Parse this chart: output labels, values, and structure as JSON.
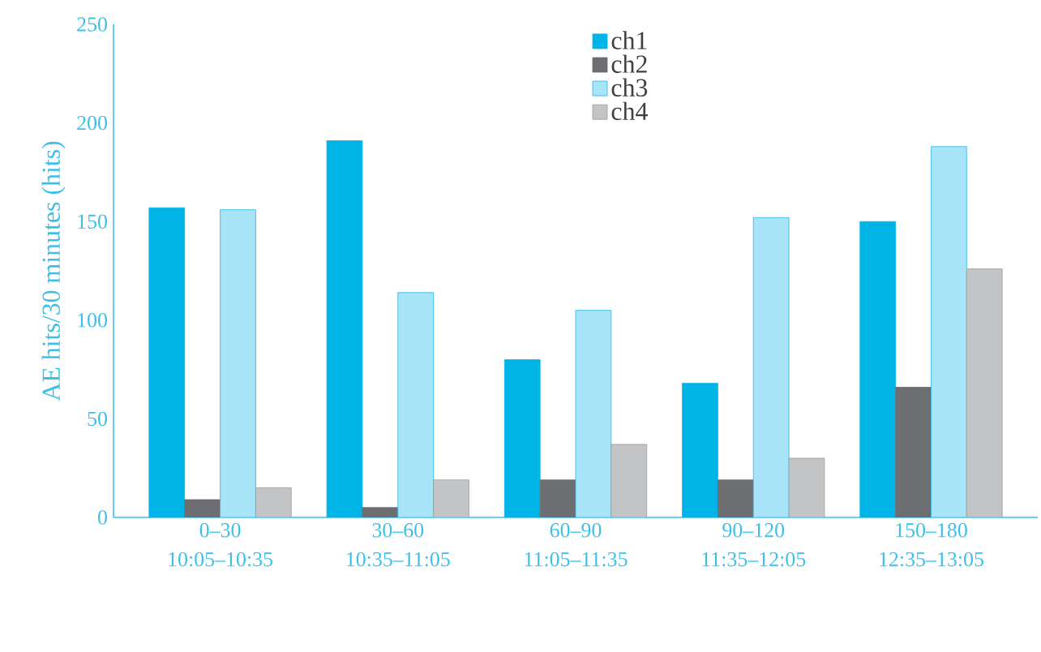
{
  "chart_data": {
    "type": "bar",
    "ylabel": "AE hits/30 minutes (hits)",
    "categories": [
      "0–30 10:05–10:35",
      "30–60 10:35–11:05",
      "60–90 11:05–11:35",
      "90–120 11:35–12:05",
      "150–180 12:35–13:05"
    ],
    "series": [
      {
        "name": "ch1",
        "color": "#00b4e8",
        "values": [
          157,
          191,
          80,
          68,
          150
        ]
      },
      {
        "name": "ch2",
        "color": "#6d6e71",
        "values": [
          9,
          5,
          19,
          19,
          66
        ]
      },
      {
        "name": "ch3",
        "color": "#a8e4f8",
        "values": [
          156,
          114,
          105,
          152,
          188
        ]
      },
      {
        "name": "ch4",
        "color": "#c3c4c6",
        "values": [
          15,
          19,
          37,
          30,
          126
        ]
      }
    ],
    "ylim": [
      0,
      250
    ],
    "yticks": [
      0,
      50,
      100,
      150,
      200,
      250
    ],
    "grid": false,
    "legend": "top"
  }
}
